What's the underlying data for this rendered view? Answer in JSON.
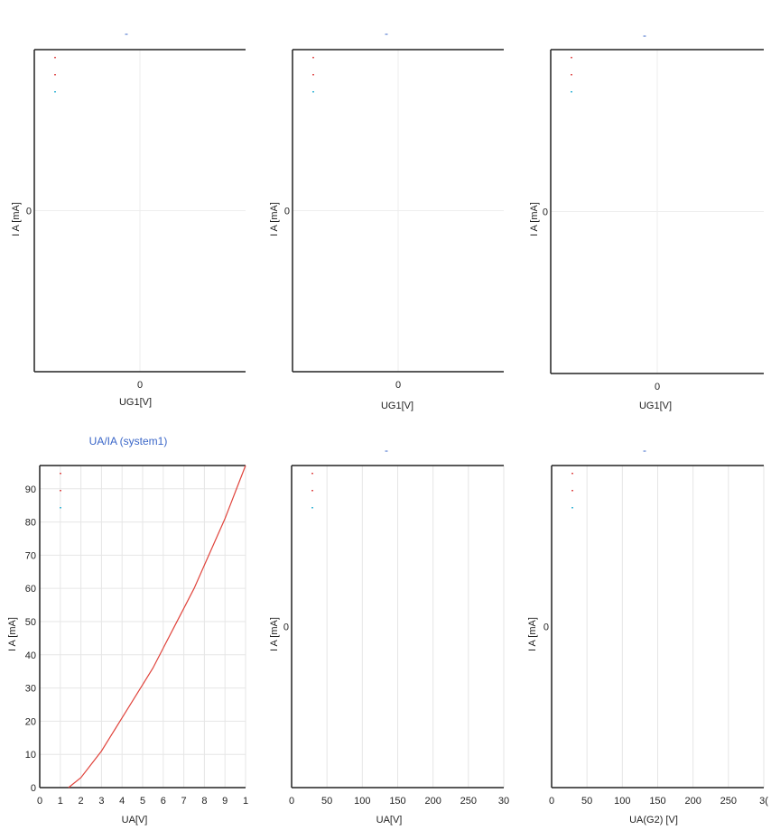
{
  "charts": [
    {
      "id": "p1",
      "type": "line",
      "title": "-",
      "xlabel": "UG1[V]",
      "ylabel": "I A [mA]",
      "xticks": [
        "0"
      ],
      "yticks": [
        "0"
      ],
      "series": [],
      "markers": [
        "red",
        "red",
        "cyan"
      ]
    },
    {
      "id": "p2",
      "type": "line",
      "title": "-",
      "xlabel": "UG1[V]",
      "ylabel": "I A [mA]",
      "xticks": [
        "0"
      ],
      "yticks": [
        "0"
      ],
      "series": [],
      "markers": [
        "red",
        "red",
        "cyan"
      ]
    },
    {
      "id": "p3",
      "type": "line",
      "title": "-",
      "xlabel": "UG1[V]",
      "ylabel": "I A [mA]",
      "xticks": [
        "0"
      ],
      "yticks": [
        "0"
      ],
      "series": [],
      "markers": [
        "red",
        "red",
        "cyan"
      ]
    },
    {
      "id": "p4",
      "type": "line",
      "title": "UA/IA (system1)",
      "xlabel": "UA[V]",
      "ylabel": "I A [mA]",
      "xlim": [
        0,
        10
      ],
      "ylim": [
        0,
        97
      ],
      "xticks": [
        "0",
        "1",
        "2",
        "3",
        "4",
        "5",
        "6",
        "7",
        "8",
        "9",
        "1"
      ],
      "yticks": [
        "0",
        "10",
        "20",
        "30",
        "40",
        "50",
        "60",
        "70",
        "80",
        "90"
      ],
      "grid": true,
      "series": [
        {
          "color": "#e0443c",
          "x": [
            1.4,
            2.0,
            2.5,
            3.0,
            3.5,
            4.0,
            4.5,
            5.0,
            5.5,
            6.0,
            6.5,
            7.0,
            7.5,
            8.0,
            8.5,
            9.0,
            9.5,
            10.0
          ],
          "y": [
            0,
            3,
            7,
            11,
            16,
            21,
            26,
            31,
            36,
            42,
            48,
            54,
            60,
            67,
            74,
            81,
            89,
            97
          ]
        }
      ],
      "markers": [
        "red",
        "red",
        "cyan"
      ]
    },
    {
      "id": "p5",
      "type": "line",
      "title": "-",
      "xlabel": "UA[V]",
      "ylabel": "I A [mA]",
      "xticks": [
        "0",
        "50",
        "100",
        "150",
        "200",
        "250",
        "30"
      ],
      "yticks": [
        "0"
      ],
      "grid": true,
      "series": [],
      "markers": [
        "red",
        "red",
        "cyan"
      ]
    },
    {
      "id": "p6",
      "type": "line",
      "title": "-",
      "xlabel": "UA(G2)  [V]",
      "ylabel": "I A [mA]",
      "xticks": [
        "0",
        "50",
        "100",
        "150",
        "200",
        "250",
        "3("
      ],
      "yticks": [
        "0"
      ],
      "grid": true,
      "series": [],
      "markers": [
        "red",
        "red",
        "cyan"
      ]
    }
  ],
  "chart_data": [
    {
      "type": "line",
      "title": "",
      "xlabel": "UG1[V]",
      "ylabel": "I A [mA]",
      "series": []
    },
    {
      "type": "line",
      "title": "",
      "xlabel": "UG1[V]",
      "ylabel": "I A [mA]",
      "series": []
    },
    {
      "type": "line",
      "title": "",
      "xlabel": "UG1[V]",
      "ylabel": "I A [mA]",
      "series": []
    },
    {
      "type": "line",
      "title": "UA/IA (system1)",
      "xlabel": "UA[V]",
      "ylabel": "I A [mA]",
      "xlim": [
        0,
        10
      ],
      "ylim": [
        0,
        97
      ],
      "grid": true,
      "series": [
        {
          "x": [
            1.4,
            2,
            3,
            4,
            5,
            6,
            7,
            8,
            9,
            10
          ],
          "y": [
            0,
            3,
            11,
            21,
            31,
            42,
            54,
            67,
            81,
            97
          ]
        }
      ]
    },
    {
      "type": "line",
      "title": "",
      "xlabel": "UA[V]",
      "ylabel": "I A [mA]",
      "xlim": [
        0,
        300
      ],
      "series": []
    },
    {
      "type": "line",
      "title": "",
      "xlabel": "UA(G2)  [V]",
      "ylabel": "I A [mA]",
      "xlim": [
        0,
        300
      ],
      "series": []
    }
  ]
}
